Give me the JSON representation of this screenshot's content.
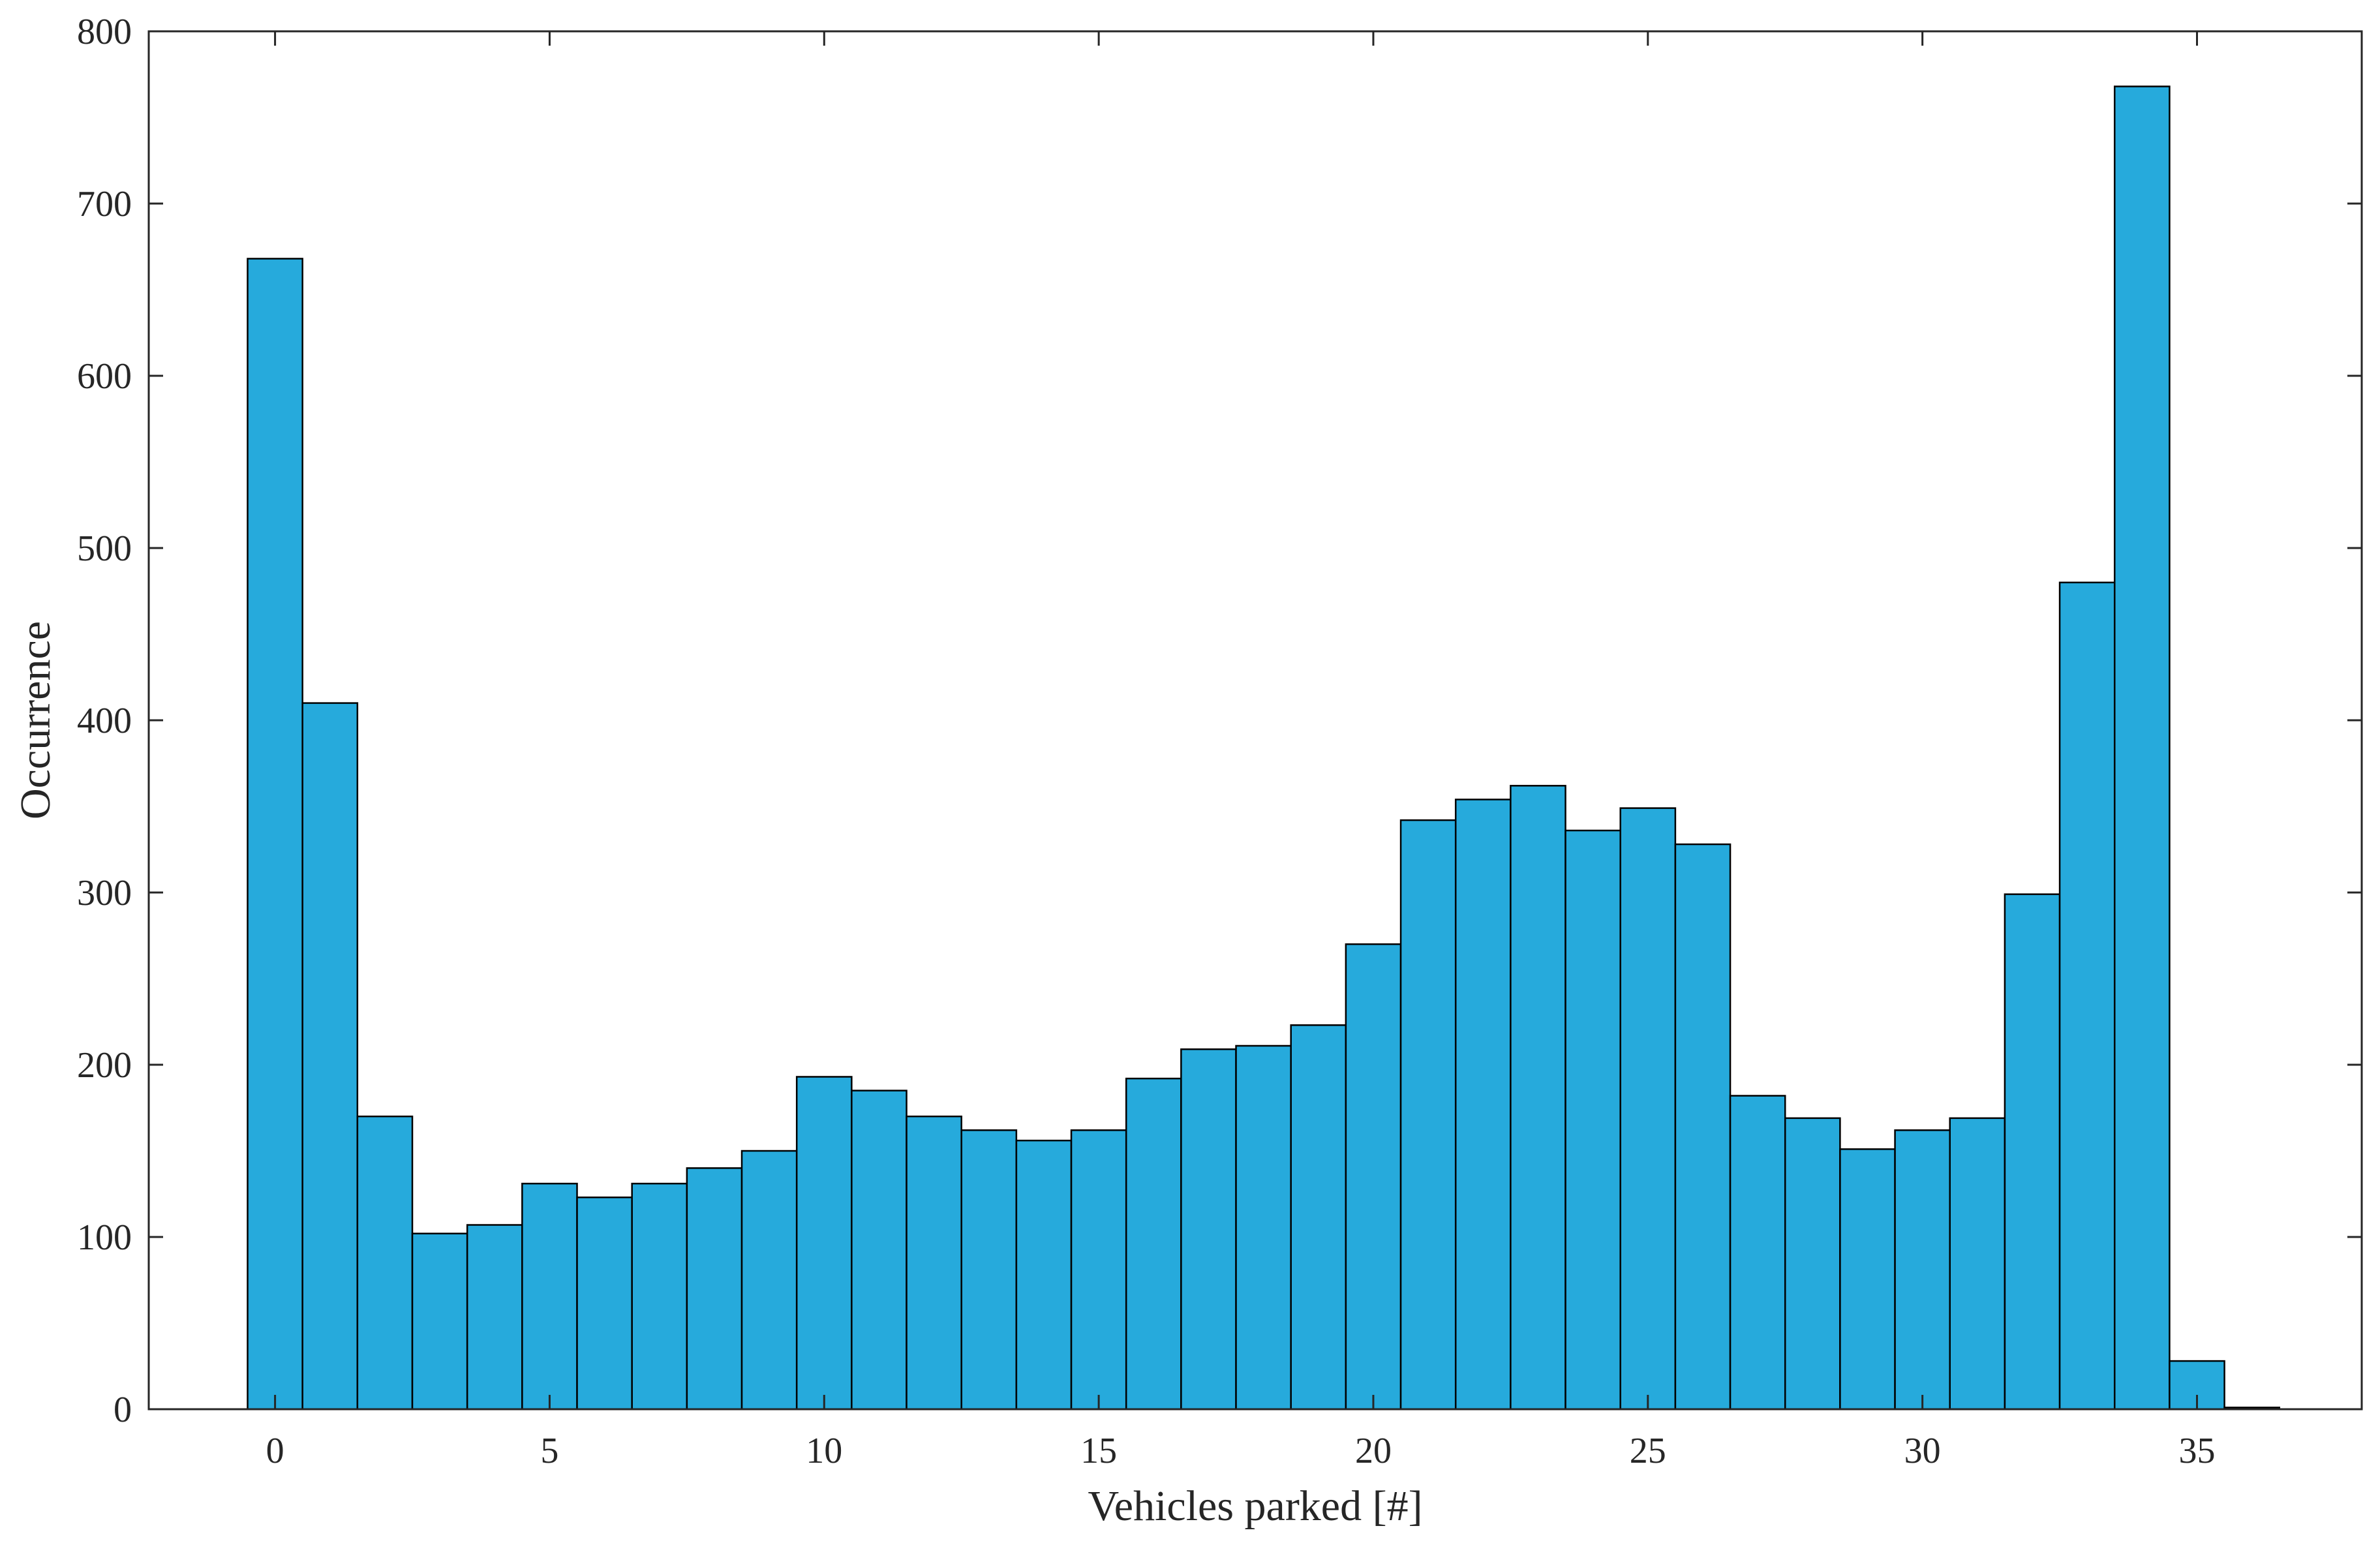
{
  "chart_data": {
    "type": "bar",
    "title": "",
    "xlabel": "Vehicles parked [#]",
    "ylabel": "Occurrence",
    "xlim": [
      -2.3,
      38
    ],
    "ylim": [
      0,
      800
    ],
    "x_ticks": [
      0,
      5,
      10,
      15,
      20,
      25,
      30,
      35
    ],
    "y_ticks": [
      0,
      100,
      200,
      300,
      400,
      500,
      600,
      700,
      800
    ],
    "grid": false,
    "legend": "none",
    "bin_width": 1,
    "categories": [
      0,
      1,
      2,
      3,
      4,
      5,
      6,
      7,
      8,
      9,
      10,
      11,
      12,
      13,
      14,
      15,
      16,
      17,
      18,
      19,
      20,
      21,
      22,
      23,
      24,
      25,
      26,
      27,
      28,
      29,
      30,
      31,
      32,
      33,
      34,
      35,
      36
    ],
    "values": [
      668,
      410,
      170,
      102,
      107,
      131,
      123,
      131,
      140,
      150,
      193,
      185,
      170,
      162,
      156,
      162,
      192,
      209,
      211,
      223,
      270,
      342,
      354,
      362,
      336,
      349,
      328,
      182,
      169,
      151,
      162,
      169,
      299,
      480,
      768,
      28,
      1
    ],
    "colors": {
      "bar_fill": "#26aadc",
      "bar_edge": "#000000",
      "axis": "#262626"
    }
  }
}
